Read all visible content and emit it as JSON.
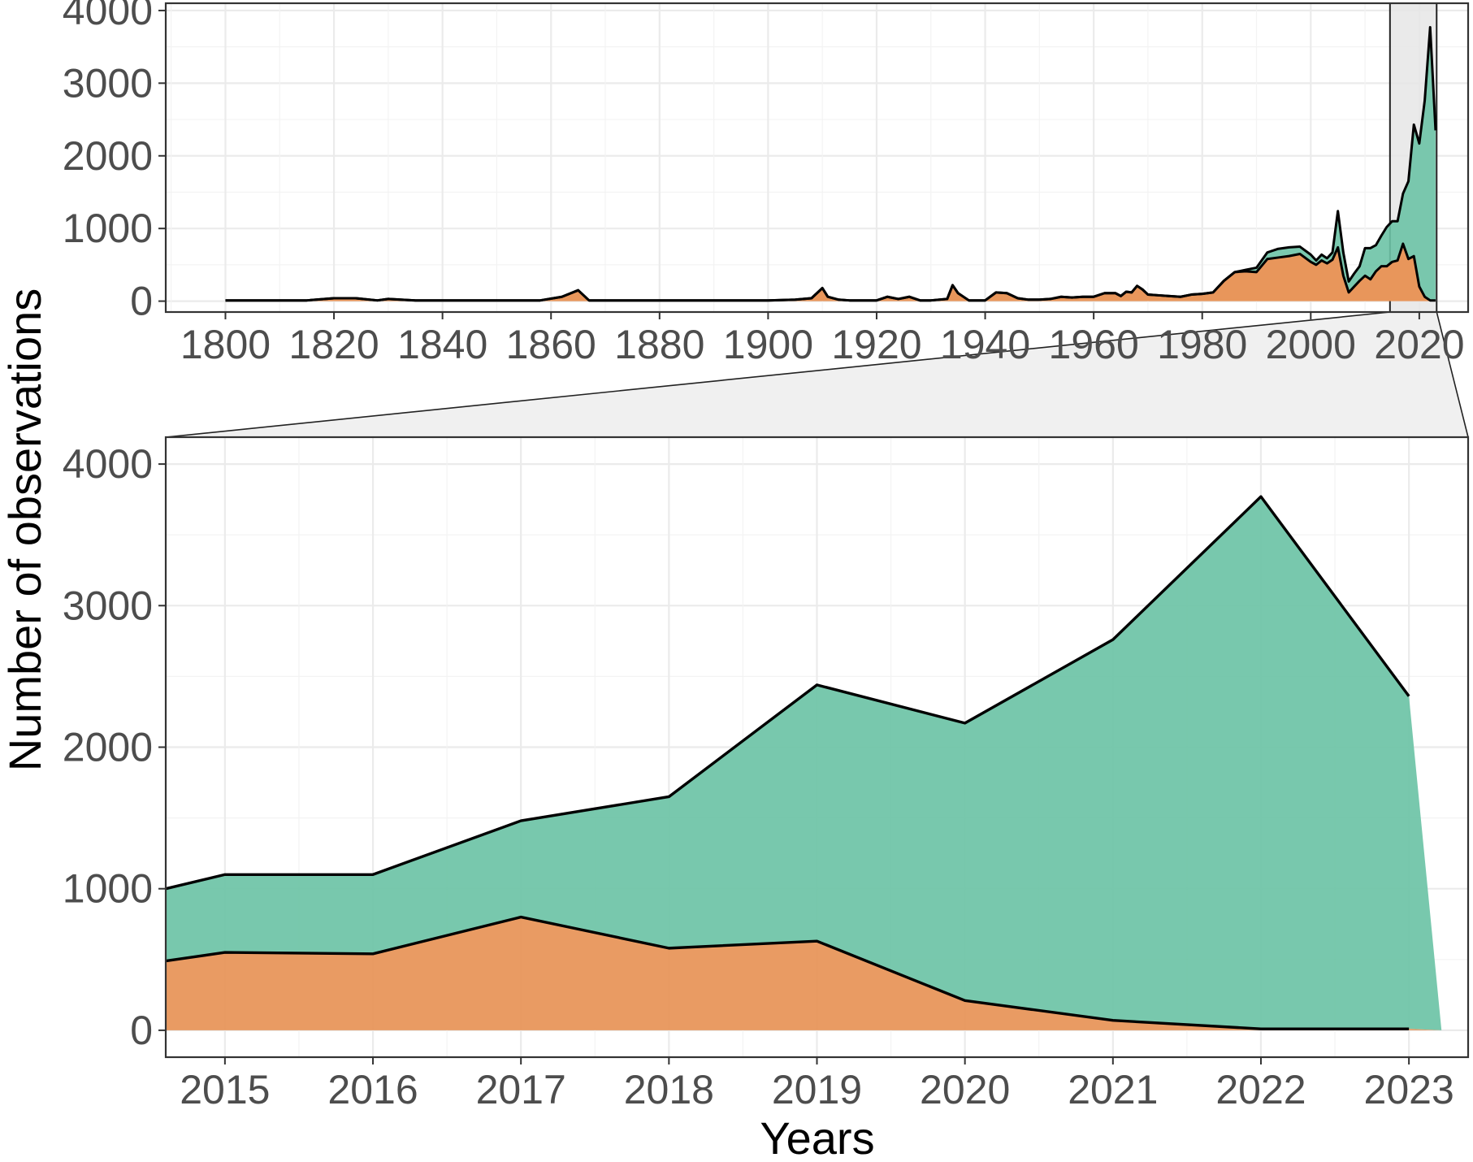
{
  "chart_data": [
    {
      "id": "overview",
      "type": "area",
      "stacked": true,
      "x_ticks": [
        1800,
        1820,
        1840,
        1860,
        1880,
        1900,
        1920,
        1940,
        1960,
        1980,
        2000,
        2020
      ],
      "y_ticks": [
        0,
        1000,
        2000,
        3000,
        4000
      ],
      "xlim": [
        1789,
        2029
      ],
      "ylim": [
        -150,
        4100
      ],
      "grid": true,
      "zoom_window": [
        2014.6,
        2023.2
      ],
      "series": [
        {
          "color": "#E8965B",
          "x": [
            1800,
            1815,
            1820,
            1824,
            1828,
            1830,
            1835,
            1840,
            1850,
            1858,
            1862,
            1865,
            1867,
            1870,
            1880,
            1890,
            1895,
            1900,
            1905,
            1908,
            1910,
            1911,
            1913,
            1915,
            1920,
            1922,
            1924,
            1926,
            1928,
            1930,
            1933,
            1934,
            1935,
            1937,
            1940,
            1942,
            1944,
            1946,
            1948,
            1950,
            1952,
            1954,
            1956,
            1958,
            1960,
            1962,
            1964,
            1965,
            1966,
            1967,
            1968,
            1969,
            1970,
            1972,
            1974,
            1976,
            1978,
            1980,
            1982,
            1984,
            1986,
            1988,
            1990,
            1992,
            1994,
            1996,
            1998,
            2000,
            2001,
            2002,
            2003,
            2004,
            2005,
            2006,
            2007,
            2008,
            2009,
            2010,
            2011,
            2012,
            2013,
            2014,
            2015,
            2016,
            2017,
            2018,
            2019,
            2020,
            2021,
            2022,
            2023
          ],
          "values": [
            10,
            10,
            40,
            40,
            10,
            30,
            10,
            10,
            10,
            10,
            60,
            150,
            10,
            10,
            10,
            10,
            10,
            10,
            20,
            40,
            180,
            60,
            20,
            10,
            10,
            60,
            30,
            60,
            10,
            10,
            30,
            220,
            110,
            10,
            10,
            120,
            110,
            40,
            20,
            20,
            30,
            60,
            50,
            60,
            60,
            110,
            110,
            70,
            130,
            120,
            210,
            160,
            90,
            80,
            70,
            60,
            90,
            100,
            120,
            280,
            400,
            410,
            400,
            580,
            600,
            620,
            650,
            540,
            500,
            560,
            520,
            570,
            740,
            350,
            120,
            200,
            280,
            350,
            300,
            410,
            480,
            480,
            540,
            560,
            790,
            580,
            620,
            200,
            60,
            10,
            10
          ]
        },
        {
          "color": "#6DC3A6",
          "x": [
            1800,
            1815,
            1820,
            1824,
            1828,
            1830,
            1835,
            1840,
            1850,
            1858,
            1862,
            1865,
            1867,
            1870,
            1880,
            1890,
            1895,
            1900,
            1905,
            1908,
            1910,
            1911,
            1913,
            1915,
            1920,
            1922,
            1924,
            1926,
            1928,
            1930,
            1933,
            1934,
            1935,
            1937,
            1940,
            1942,
            1944,
            1946,
            1948,
            1950,
            1952,
            1954,
            1956,
            1958,
            1960,
            1962,
            1964,
            1965,
            1966,
            1967,
            1968,
            1969,
            1970,
            1972,
            1974,
            1976,
            1978,
            1980,
            1982,
            1984,
            1986,
            1988,
            1990,
            1992,
            1994,
            1996,
            1998,
            2000,
            2001,
            2002,
            2003,
            2004,
            2005,
            2006,
            2007,
            2008,
            2009,
            2010,
            2011,
            2012,
            2013,
            2014,
            2015,
            2016,
            2017,
            2018,
            2019,
            2020,
            2021,
            2022,
            2023
          ],
          "values": [
            0,
            0,
            0,
            0,
            0,
            0,
            0,
            0,
            0,
            0,
            0,
            0,
            0,
            0,
            0,
            0,
            0,
            0,
            0,
            0,
            0,
            0,
            0,
            0,
            0,
            0,
            0,
            0,
            0,
            0,
            0,
            0,
            0,
            0,
            0,
            0,
            0,
            0,
            0,
            0,
            0,
            0,
            0,
            0,
            0,
            0,
            0,
            0,
            0,
            0,
            0,
            0,
            0,
            0,
            0,
            0,
            0,
            0,
            0,
            0,
            0,
            20,
            60,
            90,
            120,
            120,
            100,
            100,
            60,
            80,
            70,
            100,
            500,
            320,
            150,
            180,
            200,
            380,
            430,
            360,
            420,
            540,
            560,
            540,
            690,
            1070,
            1810,
            1970,
            2700,
            3760,
            2340
          ]
        }
      ],
      "totals_outline": true
    },
    {
      "id": "zoom",
      "type": "area",
      "stacked": true,
      "categories": [
        "2015",
        "2016",
        "2017",
        "2018",
        "2019",
        "2020",
        "2021",
        "2022",
        "2023"
      ],
      "x_ticks": [
        2015,
        2016,
        2017,
        2018,
        2019,
        2020,
        2021,
        2022,
        2023
      ],
      "y_ticks": [
        0,
        1000,
        2000,
        3000,
        4000
      ],
      "xlim": [
        2014.6,
        2023.4
      ],
      "ylim": [
        -190,
        4190
      ],
      "xlabel": "Years",
      "ylabel": "Number of observations",
      "grid": true,
      "series": [
        {
          "color": "#E8965B",
          "x": [
            2014.6,
            2015,
            2016,
            2017,
            2018,
            2019,
            2020,
            2021,
            2022,
            2023
          ],
          "values": [
            490,
            550,
            540,
            800,
            580,
            630,
            210,
            70,
            10,
            10
          ]
        },
        {
          "color": "#6DC3A6",
          "x": [
            2014.6,
            2015,
            2016,
            2017,
            2018,
            2019,
            2020,
            2021,
            2022,
            2023
          ],
          "values": [
            510,
            550,
            560,
            680,
            1070,
            1810,
            1960,
            2690,
            3760,
            2350
          ]
        }
      ],
      "tail_to_zero_at": 2023.22
    }
  ],
  "colors": {
    "orange": "#E8965B",
    "green": "#6DC3A6",
    "zoom_shade": "#EBEBEB"
  }
}
